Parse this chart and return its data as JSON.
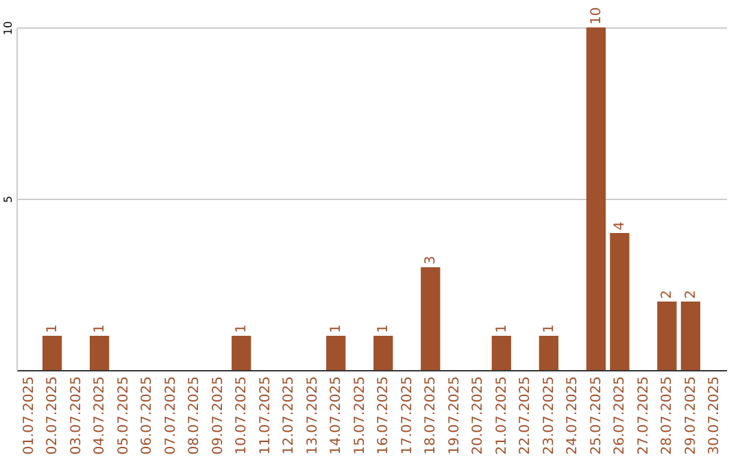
{
  "chart_data": {
    "type": "bar",
    "categories": [
      "01.07.2025",
      "02.07.2025",
      "03.07.2025",
      "04.07.2025",
      "05.07.2025",
      "06.07.2025",
      "07.07.2025",
      "08.07.2025",
      "09.07.2025",
      "10.07.2025",
      "11.07.2025",
      "12.07.2025",
      "13.07.2025",
      "14.07.2025",
      "15.07.2025",
      "16.07.2025",
      "17.07.2025",
      "18.07.2025",
      "19.07.2025",
      "20.07.2025",
      "21.07.2025",
      "22.07.2025",
      "23.07.2025",
      "24.07.2025",
      "25.07.2025",
      "26.07.2025",
      "27.07.2025",
      "28.07.2025",
      "29.07.2025",
      "30.07.2025"
    ],
    "values": [
      0,
      1,
      0,
      1,
      0,
      0,
      0,
      0,
      0,
      1,
      0,
      0,
      0,
      1,
      0,
      1,
      0,
      3,
      0,
      0,
      1,
      0,
      1,
      0,
      10,
      4,
      0,
      2,
      2,
      0
    ],
    "value_labels": [
      null,
      "1",
      null,
      "1",
      null,
      null,
      null,
      null,
      null,
      "1",
      null,
      null,
      null,
      "1",
      null,
      "1",
      null,
      "3",
      null,
      null,
      "1",
      null,
      "1",
      null,
      "10",
      "4",
      null,
      "2",
      "2",
      null
    ],
    "color": "#a0522d",
    "ylim": [
      0,
      10
    ],
    "yticks": [
      {
        "value": 0,
        "label": null
      },
      5,
      10
    ],
    "grid": "y"
  }
}
